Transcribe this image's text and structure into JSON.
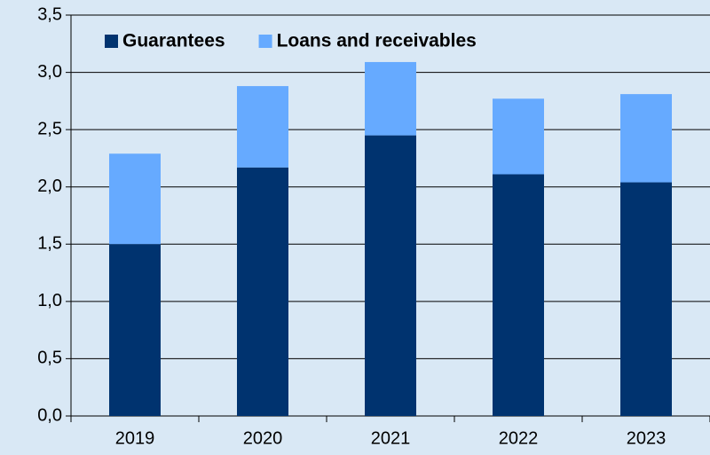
{
  "chart_data": {
    "type": "stacked_bar",
    "categories": [
      "2019",
      "2020",
      "2021",
      "2022",
      "2023"
    ],
    "series": [
      {
        "name": "Guarantees",
        "color": "#00336f",
        "values": [
          1.5,
          2.17,
          2.45,
          2.11,
          2.04
        ]
      },
      {
        "name": "Loans and receivables",
        "color": "#66aaff",
        "values": [
          0.79,
          0.71,
          0.64,
          0.66,
          0.77
        ]
      }
    ],
    "ylim": [
      0,
      3.5
    ],
    "yticks": [
      {
        "value": 0,
        "label": "0,0"
      },
      {
        "value": 0.5,
        "label": "0,5"
      },
      {
        "value": 1,
        "label": "1,0"
      },
      {
        "value": 1.5,
        "label": "1,5"
      },
      {
        "value": 2,
        "label": "2,0"
      },
      {
        "value": 2.5,
        "label": "2,5"
      },
      {
        "value": 3,
        "label": "3,0"
      },
      {
        "value": 3.5,
        "label": "3,5"
      }
    ],
    "grid": true,
    "legend": "top-left"
  }
}
